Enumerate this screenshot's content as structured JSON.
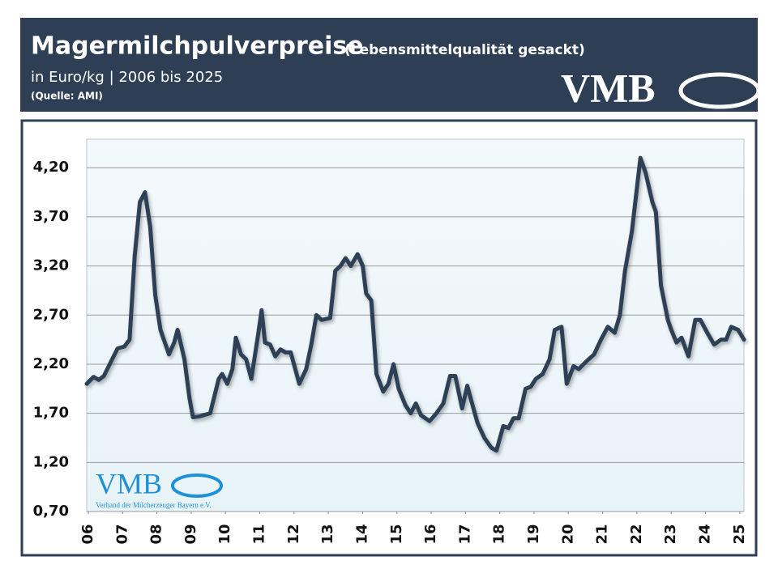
{
  "chart_data": {
    "type": "line",
    "title": "Magermilchpulverpreise",
    "title_note": "(Lebensmittelqualität gesackt)",
    "subtitle": "in Euro/kg | 2006 bis 2025",
    "source": "(Quelle: AMI)",
    "logo": "VMB",
    "watermark": {
      "logo": "VMB",
      "text": "Verband der Milcherzeuger Bayern e.V."
    },
    "color": "#2e3f55",
    "grid": true,
    "xlim": [
      2006,
      2025.17
    ],
    "xticks": [
      {
        "value": 2006,
        "label": "06"
      },
      {
        "value": 2007,
        "label": "07"
      },
      {
        "value": 2008,
        "label": "08"
      },
      {
        "value": 2009,
        "label": "09"
      },
      {
        "value": 2010,
        "label": "10"
      },
      {
        "value": 2011,
        "label": "11"
      },
      {
        "value": 2012,
        "label": "12"
      },
      {
        "value": 2013,
        "label": "13"
      },
      {
        "value": 2014,
        "label": "14"
      },
      {
        "value": 2015,
        "label": "15"
      },
      {
        "value": 2016,
        "label": "16"
      },
      {
        "value": 2017,
        "label": "17"
      },
      {
        "value": 2018,
        "label": "18"
      },
      {
        "value": 2019,
        "label": "19"
      },
      {
        "value": 2020,
        "label": "20"
      },
      {
        "value": 2021,
        "label": "21"
      },
      {
        "value": 2022,
        "label": "22"
      },
      {
        "value": 2023,
        "label": "23"
      },
      {
        "value": 2024,
        "label": "24"
      },
      {
        "value": 2025,
        "label": "25"
      }
    ],
    "ylim": [
      0.7,
      4.49
    ],
    "yticks": [
      {
        "value": 0.7,
        "label": "0,70"
      },
      {
        "value": 1.2,
        "label": "1,20"
      },
      {
        "value": 1.7,
        "label": "1,70"
      },
      {
        "value": 2.2,
        "label": "2,20"
      },
      {
        "value": 2.7,
        "label": "2,70"
      },
      {
        "value": 3.2,
        "label": "3,20"
      },
      {
        "value": 3.7,
        "label": "3,70"
      },
      {
        "value": 4.2,
        "label": "4,20"
      }
    ],
    "x": [
      2006.0,
      2006.2,
      2006.35,
      2006.5,
      2006.7,
      2006.9,
      2007.1,
      2007.25,
      2007.4,
      2007.55,
      2007.7,
      2007.85,
      2008.0,
      2008.15,
      2008.4,
      2008.55,
      2008.65,
      2008.85,
      2009.0,
      2009.1,
      2009.3,
      2009.6,
      2009.85,
      2009.95,
      2010.1,
      2010.25,
      2010.35,
      2010.5,
      2010.65,
      2010.8,
      2011.0,
      2011.1,
      2011.2,
      2011.35,
      2011.5,
      2011.65,
      2011.8,
      2011.95,
      2012.2,
      2012.4,
      2012.55,
      2012.7,
      2012.85,
      2013.1,
      2013.25,
      2013.4,
      2013.55,
      2013.7,
      2013.9,
      2014.05,
      2014.15,
      2014.3,
      2014.45,
      2014.65,
      2014.8,
      2014.95,
      2015.1,
      2015.3,
      2015.45,
      2015.6,
      2015.75,
      2016.0,
      2016.2,
      2016.4,
      2016.6,
      2016.75,
      2016.95,
      2017.1,
      2017.2,
      2017.4,
      2017.6,
      2017.8,
      2017.95,
      2018.15,
      2018.3,
      2018.45,
      2018.6,
      2018.8,
      2018.95,
      2019.1,
      2019.3,
      2019.5,
      2019.65,
      2019.85,
      2020.0,
      2020.2,
      2020.35,
      2020.55,
      2020.8,
      2021.0,
      2021.2,
      2021.4,
      2021.55,
      2021.7,
      2021.9,
      2022.05,
      2022.15,
      2022.3,
      2022.5,
      2022.6,
      2022.75,
      2022.95,
      2023.05,
      2023.2,
      2023.35,
      2023.55,
      2023.75,
      2023.9,
      2024.1,
      2024.3,
      2024.5,
      2024.65,
      2024.8,
      2025.0,
      2025.17
    ],
    "values": [
      2.0,
      2.07,
      2.04,
      2.08,
      2.22,
      2.36,
      2.38,
      2.45,
      3.3,
      3.85,
      3.95,
      3.6,
      2.9,
      2.55,
      2.3,
      2.42,
      2.55,
      2.25,
      1.85,
      1.66,
      1.67,
      1.7,
      2.05,
      2.1,
      2.0,
      2.15,
      2.47,
      2.3,
      2.25,
      2.05,
      2.5,
      2.75,
      2.42,
      2.4,
      2.28,
      2.35,
      2.32,
      2.32,
      2.0,
      2.15,
      2.4,
      2.7,
      2.65,
      2.67,
      3.15,
      3.2,
      3.28,
      3.2,
      3.32,
      3.2,
      2.92,
      2.85,
      2.1,
      1.92,
      2.0,
      2.2,
      1.95,
      1.78,
      1.7,
      1.8,
      1.68,
      1.62,
      1.7,
      1.8,
      2.08,
      2.08,
      1.75,
      1.98,
      1.85,
      1.6,
      1.45,
      1.35,
      1.32,
      1.57,
      1.55,
      1.65,
      1.65,
      1.95,
      1.97,
      2.05,
      2.1,
      2.25,
      2.55,
      2.58,
      2.0,
      2.18,
      2.15,
      2.22,
      2.3,
      2.45,
      2.58,
      2.52,
      2.7,
      3.15,
      3.55,
      4.0,
      4.3,
      4.15,
      3.85,
      3.75,
      3.0,
      2.65,
      2.55,
      2.42,
      2.47,
      2.28,
      2.65,
      2.65,
      2.52,
      2.4,
      2.45,
      2.45,
      2.58,
      2.55,
      2.45
    ]
  }
}
